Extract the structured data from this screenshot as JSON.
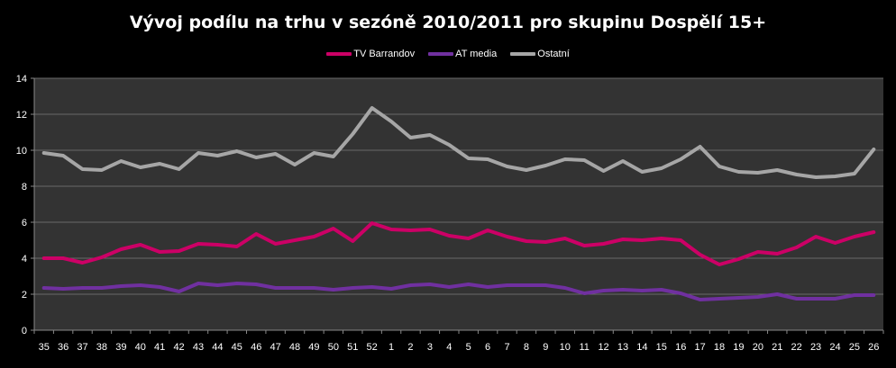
{
  "chart_data": {
    "type": "line",
    "title": "Vývoj podílu na trhu v sezóně 2010/2011  pro skupinu Dospělí 15+",
    "xlabel": "",
    "ylabel": "",
    "categories": [
      "35",
      "36",
      "37",
      "38",
      "39",
      "40",
      "41",
      "42",
      "43",
      "44",
      "45",
      "46",
      "47",
      "48",
      "49",
      "50",
      "51",
      "52",
      "1",
      "2",
      "3",
      "4",
      "5",
      "6",
      "7",
      "8",
      "9",
      "10",
      "11",
      "12",
      "13",
      "14",
      "15",
      "16",
      "17",
      "18",
      "19",
      "20",
      "21",
      "22",
      "23",
      "24",
      "25",
      "26"
    ],
    "ylim": [
      0,
      14
    ],
    "yticks": [
      0,
      2,
      4,
      6,
      8,
      10,
      12,
      14
    ],
    "grid": true,
    "legend_position": "top",
    "plot_background": "#333333",
    "series": [
      {
        "name": "TV Barrandov",
        "color": "#cc0066",
        "values": [
          4.0,
          4.0,
          3.75,
          4.05,
          4.5,
          4.75,
          4.35,
          4.4,
          4.8,
          4.75,
          4.65,
          5.35,
          4.8,
          5.0,
          5.2,
          5.65,
          4.95,
          5.95,
          5.6,
          5.55,
          5.6,
          5.25,
          5.1,
          5.55,
          5.2,
          4.95,
          4.9,
          5.1,
          4.7,
          4.8,
          5.05,
          5.0,
          5.1,
          5.0,
          4.2,
          3.65,
          3.95,
          4.35,
          4.25,
          4.6,
          5.2,
          4.85,
          5.2,
          5.45
        ]
      },
      {
        "name": "AT media",
        "color": "#7030a0",
        "values": [
          2.35,
          2.3,
          2.35,
          2.35,
          2.45,
          2.5,
          2.4,
          2.15,
          2.6,
          2.5,
          2.6,
          2.55,
          2.35,
          2.35,
          2.35,
          2.25,
          2.35,
          2.4,
          2.3,
          2.5,
          2.55,
          2.4,
          2.55,
          2.4,
          2.5,
          2.5,
          2.5,
          2.35,
          2.05,
          2.2,
          2.25,
          2.2,
          2.25,
          2.05,
          1.7,
          1.75,
          1.8,
          1.85,
          2.0,
          1.75,
          1.75,
          1.75,
          1.95,
          1.95
        ]
      },
      {
        "name": "Ostatní",
        "color": "#a6a6a6",
        "values": [
          9.85,
          9.7,
          8.95,
          8.9,
          9.4,
          9.05,
          9.25,
          8.95,
          9.85,
          9.7,
          9.95,
          9.6,
          9.8,
          9.2,
          9.85,
          9.65,
          10.9,
          12.35,
          11.6,
          10.7,
          10.85,
          10.3,
          9.55,
          9.5,
          9.1,
          8.9,
          9.15,
          9.5,
          9.45,
          8.85,
          9.4,
          8.8,
          9.0,
          9.5,
          10.2,
          9.1,
          8.8,
          8.75,
          8.9,
          8.65,
          8.5,
          8.55,
          8.7,
          10.05
        ]
      }
    ]
  }
}
